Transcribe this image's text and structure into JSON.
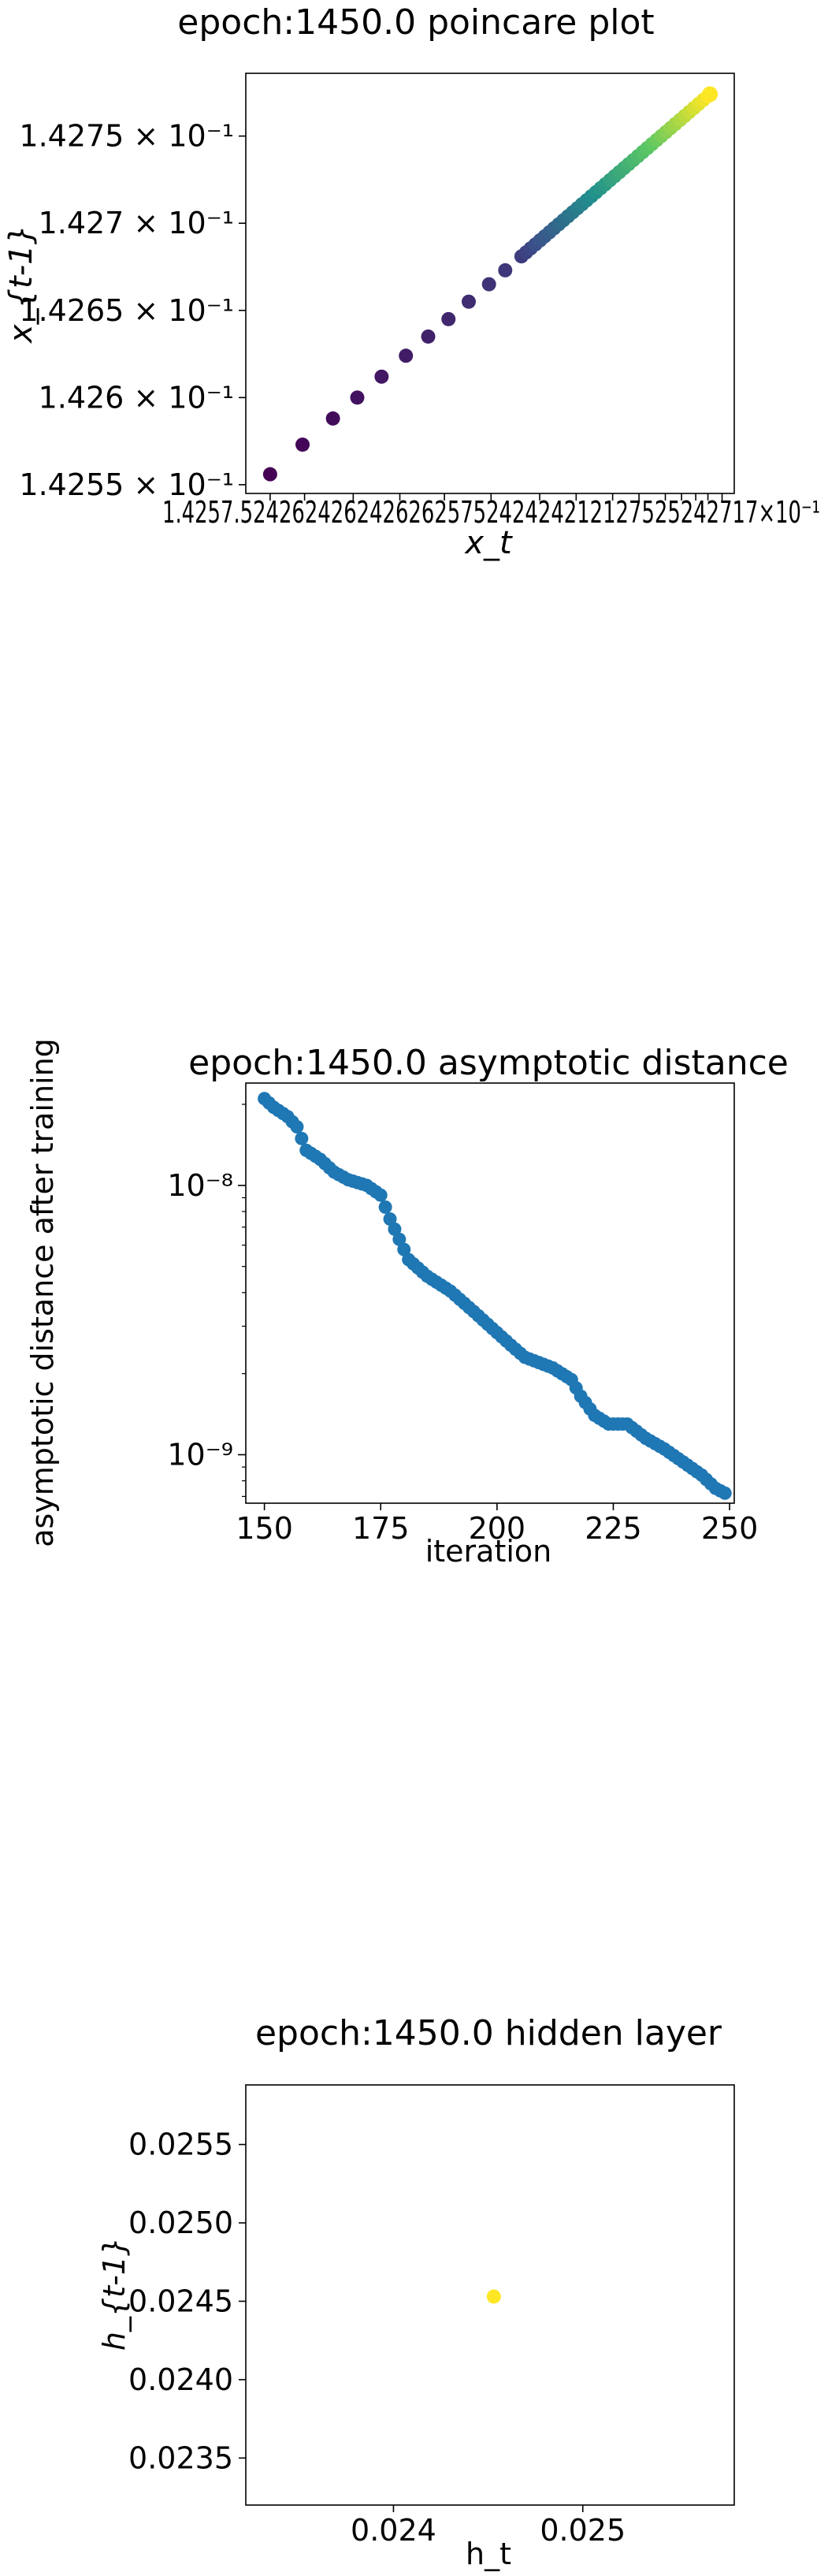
{
  "chart_data": [
    {
      "type": "scatter",
      "title": "epoch:1450.0 poincare plot",
      "xlabel": "x_t",
      "ylabel": "x_{t-1}",
      "y_tick_labels": [
        "1.4255 × 10⁻¹",
        "1.426 × 10⁻¹",
        "1.4265 × 10⁻¹",
        "1.427 × 10⁻¹",
        "1.4275 × 10⁻¹"
      ],
      "y_tick_values": [
        0.14255,
        0.1426,
        0.14265,
        0.1427,
        0.14275
      ],
      "x_tick_labels": [
        "1.4257.5",
        "2426",
        "2426",
        "2426",
        "3×10⁻¹",
        "4",
        "2427",
        "5",
        "2427",
        "5",
        "2427",
        "5",
        "2427",
        "5",
        "×10⁻¹"
      ],
      "xlim": [
        0.142545,
        0.142786
      ],
      "ylim": [
        0.142545,
        0.142786
      ],
      "colormap": [
        "#440154",
        "#3b528b",
        "#21908c",
        "#5dc863",
        "#fde725"
      ],
      "points_first": [
        [
          0.142557,
          0.142556
        ],
        [
          0.142556,
          0.142573
        ],
        [
          0.142573,
          0.142588
        ],
        [
          0.142588,
          0.1426
        ],
        [
          0.1426,
          0.142612
        ],
        [
          0.142612,
          0.142624
        ],
        [
          0.142624,
          0.142635
        ],
        [
          0.142635,
          0.142645
        ],
        [
          0.142645,
          0.142655
        ],
        [
          0.142655,
          0.142665
        ],
        [
          0.142665,
          0.142673
        ],
        [
          0.142673,
          0.142681
        ]
      ],
      "points_last": [
        0.142774,
        0.142774
      ]
    },
    {
      "type": "scatter",
      "title": "epoch:1450.0 asymptotic distance",
      "xlabel": "iteration",
      "ylabel": "asymptotic distance after training",
      "x_ticks": [
        150,
        175,
        200,
        225,
        250
      ],
      "xlim": [
        146,
        251
      ],
      "ylim_log10": [
        -9.18,
        -7.62
      ],
      "y_tick_labels": [
        "10⁻⁸",
        "10⁻⁹"
      ],
      "y_tick_values": [
        1e-08,
        1e-09
      ],
      "color": "#1f77b4",
      "anchors": [
        [
          150,
          2.1e-08
        ],
        [
          152,
          1.95e-08
        ],
        [
          155,
          1.8e-08
        ],
        [
          157,
          1.65e-08
        ],
        [
          159,
          1.35e-08
        ],
        [
          162,
          1.25e-08
        ],
        [
          165,
          1.12e-08
        ],
        [
          168,
          1.05e-08
        ],
        [
          172,
          1e-08
        ],
        [
          175,
          9.2e-09
        ],
        [
          177,
          7.5e-09
        ],
        [
          181,
          5.3e-09
        ],
        [
          185,
          4.6e-09
        ],
        [
          190,
          4.05e-09
        ],
        [
          195,
          3.4e-09
        ],
        [
          198,
          3.05e-09
        ],
        [
          203,
          2.55e-09
        ],
        [
          206,
          2.3e-09
        ],
        [
          212,
          2.1e-09
        ],
        [
          216,
          1.9e-09
        ],
        [
          218,
          1.65e-09
        ],
        [
          221,
          1.4e-09
        ],
        [
          224,
          1.3e-09
        ],
        [
          228,
          1.3e-09
        ],
        [
          232,
          1.15e-09
        ],
        [
          236,
          1.05e-09
        ],
        [
          240,
          9.4e-10
        ],
        [
          244,
          8.4e-10
        ],
        [
          247,
          7.5e-10
        ],
        [
          249,
          7.2e-10
        ]
      ]
    },
    {
      "type": "scatter",
      "title": "epoch:1450.0 hidden layer",
      "xlabel": "h_t",
      "ylabel": "h_{t-1}",
      "x_ticks": [
        0.024,
        0.025
      ],
      "x_tick_labels": [
        "0.024",
        "0.025"
      ],
      "y_ticks": [
        0.0235,
        0.024,
        0.0245,
        0.025,
        0.0255
      ],
      "y_tick_labels": [
        "0.0235",
        "0.0240",
        "0.0245",
        "0.0250",
        "0.0255"
      ],
      "xlim": [
        0.02322,
        0.0258
      ],
      "ylim": [
        0.0232,
        0.02588
      ],
      "points": [
        [
          0.02453,
          0.02453
        ]
      ],
      "color": "#fde725"
    }
  ]
}
